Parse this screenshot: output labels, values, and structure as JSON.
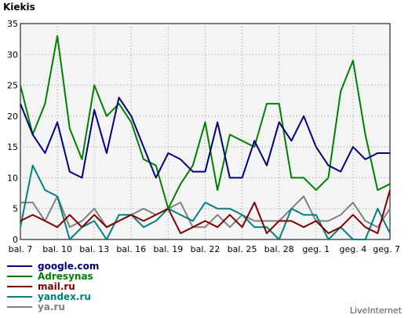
{
  "chart_data": {
    "type": "line",
    "title": "Kiekis",
    "xlabel": "",
    "ylabel": "",
    "ylim": [
      0,
      35
    ],
    "yticks": [
      "0",
      "5",
      "10",
      "15",
      "20",
      "25",
      "30",
      "35"
    ],
    "x": [
      "bal. 7",
      "bal. 8",
      "bal. 9",
      "bal. 10",
      "bal. 11",
      "bal. 12",
      "bal. 13",
      "bal. 14",
      "bal. 15",
      "bal. 16",
      "bal. 17",
      "bal. 18",
      "bal. 19",
      "bal. 20",
      "bal. 21",
      "bal. 22",
      "bal. 23",
      "bal. 24",
      "bal. 25",
      "bal. 26",
      "bal. 27",
      "bal. 28",
      "bal. 29",
      "bal. 30",
      "geg. 1",
      "geg. 2",
      "geg. 3",
      "geg. 4",
      "geg. 5",
      "geg. 6",
      "geg. 7"
    ],
    "xtick_labels": [
      "bal. 7",
      "bal. 10",
      "bal. 13",
      "bal. 16",
      "bal. 19",
      "bal. 22",
      "bal. 25",
      "bal. 28",
      "geg. 1",
      "geg. 4",
      "geg. 7"
    ],
    "grid": true,
    "legend": "bottom-left",
    "series": [
      {
        "name": "google.com",
        "color": "#000080",
        "values": [
          22,
          17,
          14,
          19,
          11,
          10,
          21,
          14,
          23,
          20,
          15,
          10,
          14,
          13,
          11,
          11,
          19,
          10,
          10,
          16,
          12,
          19,
          16,
          20,
          15,
          12,
          11,
          15,
          13,
          14,
          14
        ]
      },
      {
        "name": "Adresynas",
        "color": "#008000",
        "values": [
          25,
          17,
          22,
          33,
          18,
          13,
          25,
          20,
          22,
          19,
          13,
          12,
          5,
          9,
          12,
          19,
          8,
          17,
          16,
          15,
          22,
          22,
          10,
          10,
          8,
          10,
          24,
          29,
          17,
          8,
          9
        ]
      },
      {
        "name": "mail.ru",
        "color": "#800000",
        "values": [
          3,
          4,
          3,
          2,
          4,
          2,
          4,
          2,
          3,
          4,
          3,
          4,
          5,
          1,
          2,
          3,
          2,
          4,
          2,
          6,
          1,
          3,
          3,
          2,
          3,
          1,
          2,
          4,
          2,
          1,
          8
        ]
      },
      {
        "name": "yandex.ru",
        "color": "#008080",
        "values": [
          2,
          12,
          8,
          7,
          0,
          2,
          3,
          0,
          4,
          4,
          2,
          3,
          5,
          4,
          3,
          6,
          5,
          5,
          4,
          2,
          2,
          0,
          5,
          4,
          4,
          0,
          2,
          0,
          0,
          5,
          1
        ]
      },
      {
        "name": "ya.ru",
        "color": "#808080",
        "values": [
          6,
          6,
          3,
          7,
          2,
          3,
          5,
          2,
          3,
          4,
          5,
          4,
          5,
          6,
          2,
          2,
          4,
          2,
          4,
          3,
          3,
          3,
          5,
          7,
          3,
          3,
          4,
          6,
          3,
          2,
          5
        ]
      }
    ]
  },
  "footer": {
    "brand": "LiveInternet"
  }
}
